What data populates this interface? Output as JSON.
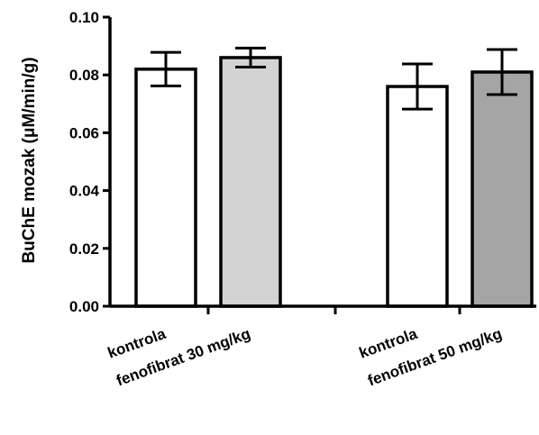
{
  "chart_data": {
    "type": "bar",
    "categories": [
      "kontrola",
      "fenofibrat 30 mg/kg",
      "kontrola",
      "fenofibrat 50 mg/kg"
    ],
    "values": [
      0.082,
      0.086,
      0.076,
      0.081
    ],
    "errors": [
      0.0058,
      0.0033,
      0.0078,
      0.0078
    ],
    "bar_colors": [
      "#ffffff",
      "#d3d3d3",
      "#ffffff",
      "#a5a5a5"
    ],
    "ylabel": "BuChE mozak (μM/min/g)",
    "ylim": [
      0,
      0.1
    ],
    "yticks": [
      "0.00",
      "0.02",
      "0.04",
      "0.06",
      "0.08",
      "0.10"
    ],
    "grid": false,
    "legend": "none"
  }
}
